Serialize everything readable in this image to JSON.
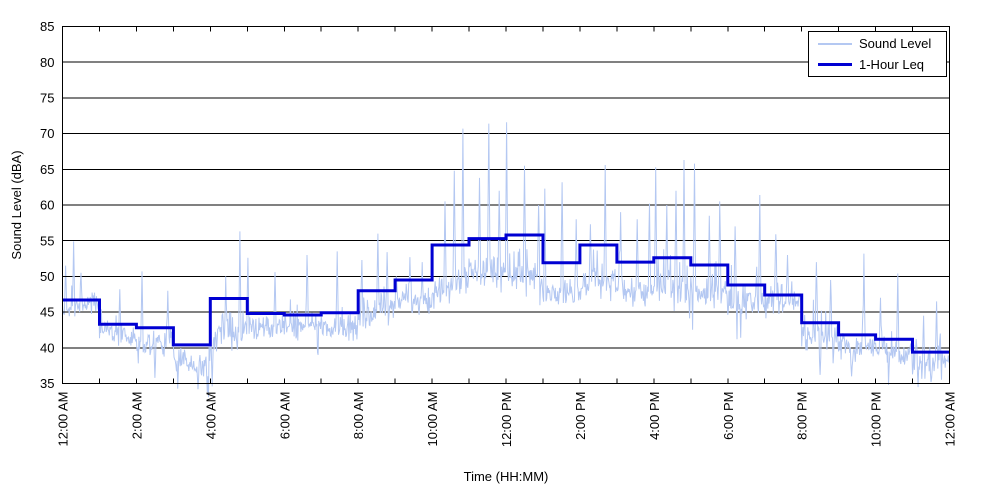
{
  "figure": {
    "background": "#ffffff",
    "legend": {
      "position": "top-right",
      "entries": [
        {
          "label": "Sound Level"
        },
        {
          "label": "1-Hour Leq"
        }
      ]
    }
  },
  "chart_data": {
    "type": "line",
    "title": "",
    "xlabel": "Time (HH:MM)",
    "ylabel": "Sound Level (dBA)",
    "xlim_hours": [
      0,
      24
    ],
    "ylim": [
      35,
      85
    ],
    "yticks": [
      35,
      40,
      45,
      50,
      55,
      60,
      65,
      70,
      75,
      80,
      85
    ],
    "xticks": [
      {
        "hour": 0,
        "label": "12:00 AM"
      },
      {
        "hour": 2,
        "label": "2:00 AM"
      },
      {
        "hour": 4,
        "label": "4:00 AM"
      },
      {
        "hour": 6,
        "label": "6:00 AM"
      },
      {
        "hour": 8,
        "label": "8:00 AM"
      },
      {
        "hour": 10,
        "label": "10:00 AM"
      },
      {
        "hour": 12,
        "label": "12:00 PM"
      },
      {
        "hour": 14,
        "label": "2:00 PM"
      },
      {
        "hour": 16,
        "label": "4:00 PM"
      },
      {
        "hour": 18,
        "label": "6:00 PM"
      },
      {
        "hour": 20,
        "label": "8:00 PM"
      },
      {
        "hour": 22,
        "label": "10:00 PM"
      },
      {
        "hour": 24,
        "label": "12:00 AM"
      }
    ],
    "minor_xtick_every_hours": 1,
    "grid": {
      "horizontal": true,
      "color": "#000000"
    },
    "axis_color": "#000000",
    "series": [
      {
        "name": "Sound Level",
        "kind": "fast-fluctuating-trace",
        "color": "#b4c8f2",
        "line_width": 1,
        "samples_per_hour": 60,
        "seed": 42,
        "hourly_center_dBA": [
          45.3,
          42.3,
          40.8,
          38.3,
          42.0,
          43.3,
          43.2,
          43.3,
          45.3,
          46.8,
          48.8,
          49.8,
          50.0,
          48.3,
          49.3,
          48.8,
          48.8,
          48.3,
          47.0,
          45.8,
          41.3,
          40.3,
          39.8,
          38.8
        ],
        "hourly_spread_dBA": [
          1.8,
          1.7,
          2.0,
          2.0,
          2.8,
          1.6,
          1.8,
          1.8,
          2.2,
          2.0,
          2.6,
          2.6,
          2.6,
          2.2,
          2.4,
          2.3,
          2.4,
          2.4,
          2.3,
          2.3,
          2.3,
          2.2,
          2.4,
          2.2
        ],
        "spikes_hour_level": [
          [
            0.08,
            51.5
          ],
          [
            0.3,
            54.9
          ],
          [
            0.5,
            50.5
          ],
          [
            1.55,
            48.2
          ],
          [
            2.15,
            50.7
          ],
          [
            2.85,
            48.0
          ],
          [
            4.42,
            50.0
          ],
          [
            4.8,
            56.3
          ],
          [
            5.02,
            52.6
          ],
          [
            5.75,
            50.6
          ],
          [
            6.62,
            53.0
          ],
          [
            7.43,
            53.5
          ],
          [
            8.1,
            52.3
          ],
          [
            8.53,
            56.0
          ],
          [
            8.78,
            53.4
          ],
          [
            9.4,
            52.7
          ],
          [
            9.73,
            52.0
          ],
          [
            10.35,
            60.5
          ],
          [
            10.6,
            64.8
          ],
          [
            10.83,
            70.7
          ],
          [
            11.28,
            63.8
          ],
          [
            11.53,
            71.4
          ],
          [
            11.82,
            62.0
          ],
          [
            12.02,
            71.6
          ],
          [
            12.5,
            65.5
          ],
          [
            12.88,
            60.0
          ],
          [
            13.05,
            62.3
          ],
          [
            13.52,
            63.2
          ],
          [
            13.9,
            58.0
          ],
          [
            14.28,
            57.3
          ],
          [
            14.69,
            65.6
          ],
          [
            15.1,
            59.0
          ],
          [
            15.55,
            58.0
          ],
          [
            15.88,
            60.2
          ],
          [
            16.05,
            65.3
          ],
          [
            16.35,
            60.0
          ],
          [
            16.6,
            62.0
          ],
          [
            16.82,
            66.3
          ],
          [
            17.1,
            65.8
          ],
          [
            17.5,
            58.5
          ],
          [
            17.78,
            60.5
          ],
          [
            18.2,
            57.0
          ],
          [
            18.87,
            61.4
          ],
          [
            19.3,
            55.9
          ],
          [
            19.62,
            53.0
          ],
          [
            20.4,
            52.0
          ],
          [
            20.78,
            49.5
          ],
          [
            21.68,
            53.2
          ],
          [
            22.13,
            47.0
          ],
          [
            22.6,
            50.4
          ],
          [
            23.3,
            44.5
          ],
          [
            23.65,
            46.5
          ]
        ],
        "dips_hour_level": [
          [
            2.5,
            35.8
          ],
          [
            3.67,
            34.2
          ],
          [
            3.92,
            33.8
          ],
          [
            4.05,
            34.6
          ],
          [
            20.5,
            36.2
          ],
          [
            21.35,
            36.0
          ],
          [
            22.35,
            34.8
          ],
          [
            23.15,
            34.5
          ],
          [
            23.5,
            35.2
          ]
        ]
      },
      {
        "name": "1-Hour Leq",
        "kind": "hourly-step",
        "color": "#0000d2",
        "line_width": 3,
        "hourly_values_dBA": [
          46.7,
          43.3,
          42.8,
          40.4,
          46.9,
          44.8,
          44.6,
          44.9,
          48.0,
          49.5,
          54.4,
          55.3,
          55.8,
          51.9,
          54.4,
          52.0,
          52.6,
          51.6,
          48.8,
          47.4,
          43.5,
          41.8,
          41.2,
          39.4
        ]
      }
    ]
  }
}
